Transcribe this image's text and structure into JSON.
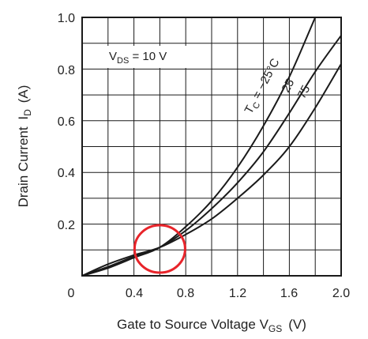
{
  "chart_data": {
    "type": "line",
    "xlabel_main": "Gate to Source Voltage",
    "xlabel_sym": "V",
    "xlabel_sub": "GS",
    "xlabel_unit": "(V)",
    "ylabel_main": "Drain Current",
    "ylabel_sym": "I",
    "ylabel_sub": "D",
    "ylabel_unit": "(A)",
    "xlim": [
      0,
      2.0
    ],
    "ylim": [
      0,
      1.0
    ],
    "x_tick_labels": [
      "0",
      "0.4",
      "0.8",
      "1.2",
      "1.6",
      "2.0"
    ],
    "y_tick_labels": [
      "0.2",
      "0.4",
      "0.6",
      "0.8",
      "1.0"
    ],
    "grid": true,
    "condition": {
      "sym": "V",
      "sub": "DS",
      "text": " = 10 V"
    },
    "series_labels": {
      "tc_sym": "T",
      "tc_sub": "C",
      "tc_text": " = −25°C",
      "s25": "25",
      "s75": "75"
    },
    "series": [
      {
        "name": "-25°C",
        "x": [
          0,
          0.2,
          0.4,
          0.6,
          0.8,
          1.0,
          1.2,
          1.4,
          1.6,
          1.8
        ],
        "y": [
          0.0,
          0.03,
          0.07,
          0.11,
          0.19,
          0.29,
          0.42,
          0.58,
          0.77,
          1.0
        ]
      },
      {
        "name": "25",
        "x": [
          0,
          0.2,
          0.4,
          0.6,
          0.8,
          1.0,
          1.2,
          1.4,
          1.6,
          1.8,
          2.0
        ],
        "y": [
          0.0,
          0.035,
          0.075,
          0.11,
          0.175,
          0.26,
          0.36,
          0.48,
          0.63,
          0.79,
          0.93
        ]
      },
      {
        "name": "75",
        "x": [
          0,
          0.2,
          0.4,
          0.6,
          0.8,
          1.0,
          1.2,
          1.4,
          1.6,
          1.8,
          2.0
        ],
        "y": [
          0.0,
          0.045,
          0.08,
          0.11,
          0.16,
          0.22,
          0.3,
          0.39,
          0.5,
          0.65,
          0.82
        ]
      }
    ],
    "highlight": {
      "x": 0.6,
      "y": 0.11,
      "color": "#e8242a"
    },
    "line_color": "#1a1a1a"
  }
}
